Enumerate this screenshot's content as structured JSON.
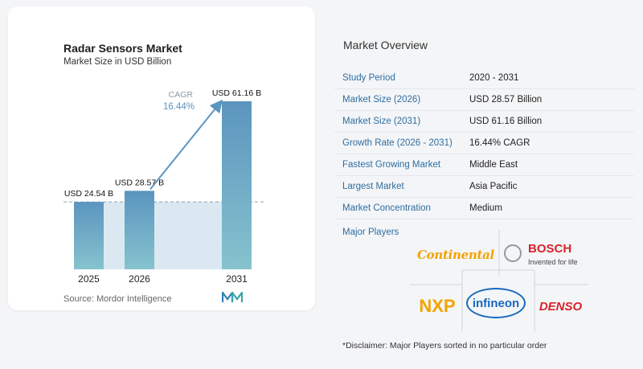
{
  "chart_title": "Radar Sensors Market",
  "chart_subtitle": "Market Size in USD Billion",
  "chart_data": {
    "type": "bar",
    "title": "Radar Sensors Market",
    "subtitle": "Market Size in USD Billion",
    "categories": [
      "2025",
      "2026",
      "2031"
    ],
    "values": [
      24.54,
      28.57,
      61.16
    ],
    "value_labels": [
      "USD 24.54 B",
      "USD 28.57 B",
      "USD 61.16 B"
    ],
    "xlabel": "",
    "ylabel": "",
    "annotation": {
      "label": "CAGR",
      "value": "16.44%"
    },
    "reference_line": 24.54,
    "colors": {
      "bar_top": "#5b95bf",
      "bar_bottom": "#86c3ce",
      "arrow": "#5b95bf",
      "band": "#dbe8f1"
    }
  },
  "source_text": "Source:  Mordor Intelligence",
  "overview": {
    "title": "Market Overview",
    "rows": [
      {
        "label": "Study Period",
        "value": "2020 - 2031"
      },
      {
        "label": "Market Size (2026)",
        "value": "USD 28.57 Billion"
      },
      {
        "label": "Market Size (2031)",
        "value": "USD 61.16 Billion"
      },
      {
        "label": "Growth Rate (2026 - 2031)",
        "value": "16.44% CAGR"
      },
      {
        "label": "Fastest Growing Market",
        "value": "Middle East"
      },
      {
        "label": "Largest Market",
        "value": "Asia Pacific"
      },
      {
        "label": "Market Concentration",
        "value": "Medium"
      }
    ]
  },
  "players": {
    "title": "Major Players",
    "logos": {
      "continental": "Continental",
      "bosch": "BOSCH",
      "bosch_tagline": "Invented for life",
      "nxp": "NXP",
      "infineon": "infineon",
      "denso": "DENSO"
    }
  },
  "disclaimer": "*Disclaimer: Major Players sorted in no particular order"
}
